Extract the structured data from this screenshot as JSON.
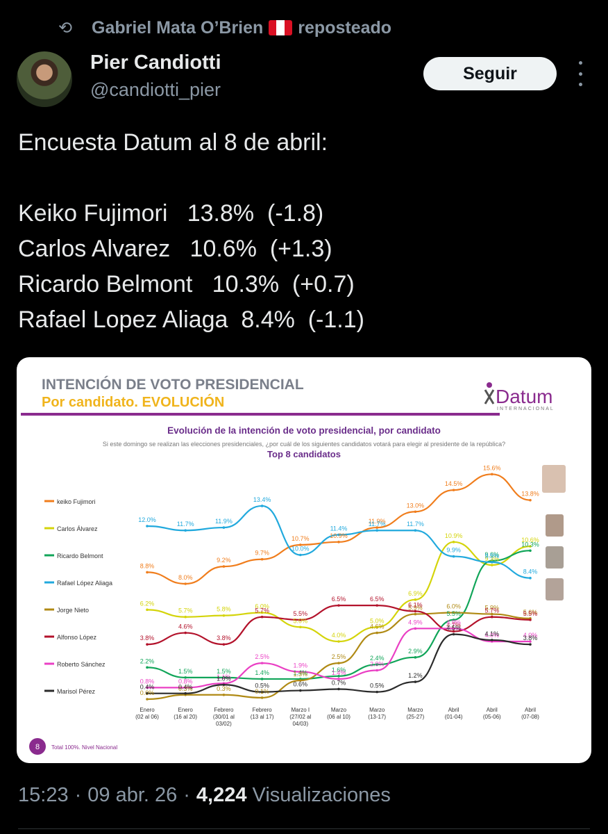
{
  "repost": {
    "icon": "repost-icon",
    "by": "Gabriel Mata O’Brien",
    "flag": "peru-flag-icon",
    "label": "reposteado"
  },
  "author": {
    "name": "Pier Candiotti",
    "handle": "@candiotti_pier",
    "avatar": "avatar-photo"
  },
  "follow_label": "Seguir",
  "more_icon": "more-vertical-icon",
  "tweet_lines": [
    "Encuesta Datum al 8 de abril:",
    "",
    "Keiko Fujimori   13.8%  (-1.8)",
    "Carlos Alvarez   10.6%  (+1.3)",
    "Ricardo Belmont   10.3%  (+0.7)",
    "Rafael Lopez Aliaga  8.4%  (-1.1)"
  ],
  "chart_header": {
    "title": "INTENCIÓN DE VOTO PRESIDENCIAL",
    "subtitle": "Por candidato. EVOLUCIÓN",
    "brand": "Datum",
    "brand_sub": "INTERNACIONAL",
    "chart_title": "Evolución de la intención de voto presidencial, por candidato",
    "question": "Si este domingo se realizan las elecciones presidenciales, ¿por cuál de los siguientes candidatos votará para elegir al presidente de la república?",
    "top": "Top 8  candidatos",
    "page_number": "8",
    "footnote": "Total 100%. Nivel Nacional"
  },
  "chart_data": {
    "type": "line",
    "title": "Evolución de la intención de voto presidencial, por candidato",
    "categories": [
      [
        "Enero",
        "(02 al 06)"
      ],
      [
        "Enero",
        "(16 al 20)"
      ],
      [
        "Febrero",
        "(30/01 al",
        "03/02)"
      ],
      [
        "Febrero",
        "(13 al 17)"
      ],
      [
        "Marzo I",
        "(27/02 al",
        "04/03)"
      ],
      [
        "Marzo",
        "(06 al 10)"
      ],
      [
        "Marzo",
        "(13-17)"
      ],
      [
        "Marzo",
        "(25-27)"
      ],
      [
        "Abril",
        "(01-04)"
      ],
      [
        "Abril",
        "(05-06)"
      ],
      [
        "Abril",
        "(07-08)"
      ]
    ],
    "series": [
      {
        "name": "keiko Fujimori",
        "color": "#f07d1c",
        "values": [
          8.8,
          8.0,
          9.2,
          9.7,
          10.7,
          10.9,
          11.9,
          13.0,
          14.5,
          15.6,
          13.8
        ]
      },
      {
        "name": "Carlos Álvarez",
        "color": "#d4d40a",
        "values": [
          6.2,
          5.7,
          5.8,
          6.0,
          5.0,
          4.0,
          5.0,
          6.9,
          10.9,
          9.3,
          10.6
        ]
      },
      {
        "name": "Ricardo Belmont",
        "color": "#11a559",
        "values": [
          2.2,
          1.5,
          1.5,
          1.4,
          1.4,
          1.6,
          2.4,
          2.9,
          5.5,
          9.6,
          10.3
        ]
      },
      {
        "name": "Rafael López Aliaga",
        "color": "#21a9dd",
        "values": [
          12.0,
          11.7,
          11.9,
          13.4,
          10.0,
          11.4,
          11.7,
          11.7,
          9.9,
          9.5,
          8.4
        ]
      },
      {
        "name": "Jorge Nieto",
        "color": "#b08a14",
        "values": [
          0.0,
          0.3,
          0.3,
          0.1,
          1.3,
          2.5,
          4.6,
          5.9,
          6.0,
          5.9,
          5.6
        ]
      },
      {
        "name": "Alfonso López",
        "color": "#b3122b",
        "values": [
          3.8,
          4.6,
          3.8,
          5.7,
          5.5,
          6.5,
          6.5,
          6.1,
          4.7,
          5.7,
          5.5
        ]
      },
      {
        "name": "Roberto Sánchez",
        "color": "#ea3fc4",
        "values": [
          0.8,
          0.8,
          1.1,
          2.5,
          1.9,
          1.4,
          2.0,
          4.9,
          4.9,
          4.0,
          4.0
        ]
      },
      {
        "name": "Marisol Pérez",
        "color": "#2b2b2b",
        "values": [
          0.4,
          0.4,
          1.0,
          0.5,
          0.6,
          0.7,
          0.5,
          1.2,
          4.5,
          4.1,
          3.8
        ]
      }
    ],
    "ylim": [
      0,
      16
    ],
    "legend": "left"
  },
  "footer": {
    "time": "15:23",
    "date": "09 abr. 26",
    "views": "4,224",
    "views_label": "Visualizaciones"
  }
}
